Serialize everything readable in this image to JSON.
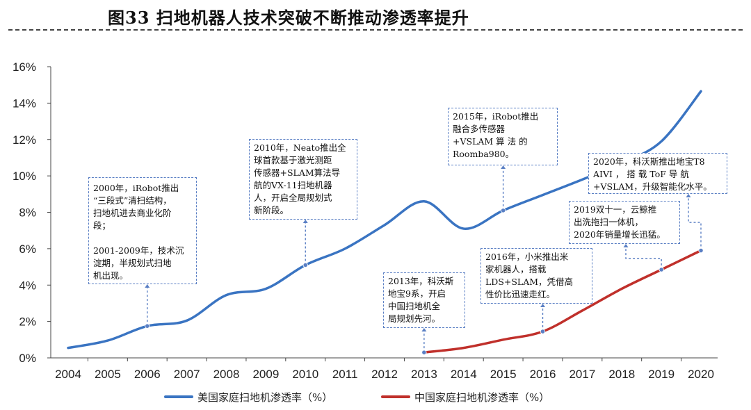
{
  "figure_title": "图33 扫地机器人技术突破不断推动渗透率提升",
  "chart_data": {
    "type": "line",
    "title": "",
    "xlabel": "",
    "ylabel": "",
    "categories": [
      "2004",
      "2005",
      "2006",
      "2007",
      "2008",
      "2009",
      "2010",
      "2011",
      "2012",
      "2013",
      "2014",
      "2015",
      "2016",
      "2017",
      "2018",
      "2019",
      "2020"
    ],
    "x": [
      2004,
      2005,
      2006,
      2007,
      2008,
      2009,
      2010,
      2011,
      2012,
      2013,
      2014,
      2015,
      2016,
      2017,
      2018,
      2019,
      2020
    ],
    "ylim": [
      0,
      16
    ],
    "yticks": [
      0,
      2,
      4,
      6,
      8,
      10,
      12,
      14,
      16
    ],
    "ytick_labels": [
      "0%",
      "2%",
      "4%",
      "6%",
      "8%",
      "10%",
      "12%",
      "14%",
      "16%"
    ],
    "grid": false,
    "legend_position": "bottom",
    "series": [
      {
        "name": "美国家庭扫地机渗透率（%）",
        "color": "#3a74c2",
        "x": [
          2004,
          2005,
          2006,
          2007,
          2008,
          2009,
          2010,
          2011,
          2012,
          2013,
          2014,
          2015,
          2016,
          2017,
          2018,
          2019,
          2020
        ],
        "values": [
          0.55,
          0.95,
          1.75,
          2.05,
          3.45,
          3.8,
          5.1,
          6.0,
          7.3,
          8.6,
          7.1,
          8.1,
          8.95,
          9.8,
          10.7,
          11.9,
          14.65
        ]
      },
      {
        "name": "中国家庭扫地机渗透率（%）",
        "color": "#c0302b",
        "x": [
          2013,
          2014,
          2015,
          2016,
          2017,
          2018,
          2019,
          2020
        ],
        "values": [
          0.3,
          0.55,
          1.0,
          1.45,
          2.6,
          3.8,
          4.85,
          5.9
        ]
      }
    ]
  },
  "annotations": [
    {
      "text": "2000年，iRobot推出\n“三段式”清扫结构，\n扫地机进去商业化阶\n段；\n\n2001-2009年，技术沉\n淀期，半规划式扫地\n机出现。"
    },
    {
      "text": "2010年，Neato推出全\n球首款基于激光测距\n传感器+SLAM算法导\n航的VX-11扫地机器\n人，开启全局规划式\n新阶段。"
    },
    {
      "text": "2015年，iRobot推出\n融合多传感器\n+VSLAM 算 法 的\nRoomba980。"
    },
    {
      "text": "2020年，科沃斯推出地宝T8\nAIVI ， 搭 载 ToF 导 航\n+VSLAM，升级智能化水平。"
    },
    {
      "text": "2019双十一，云鲸推\n出洗拖扫一体机，\n2020年销量增长迅猛。"
    },
    {
      "text": "2016年，小米推出米\n家机器人，搭载\nLDS+SLAM，凭借高\n性价比迅速走红。"
    },
    {
      "text": "2013年，科沃斯\n地宝9系，开启\n中国扫地机全\n局规划先河。"
    }
  ],
  "colors": {
    "us_line": "#3a74c2",
    "cn_line": "#c0302b",
    "callout_border": "#5a7fc4",
    "axis": "#444444"
  }
}
